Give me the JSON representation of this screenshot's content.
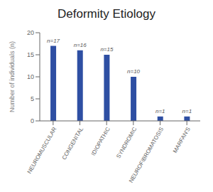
{
  "chart_data": {
    "type": "bar",
    "title": "Deformity Etiology",
    "ylabel": "Number of individuals (n)",
    "categories": [
      "NEUROMUSCULAR",
      "CONGENITAL",
      "IDIOPATHIC",
      "SYNDROMIC",
      "NEUROFIBROMATOSIS",
      "MARFAN'S"
    ],
    "values": [
      17,
      16,
      15,
      10,
      1,
      1
    ],
    "value_labels": [
      "n=17",
      "n=16",
      "n=15",
      "n=10",
      "n=1",
      "n=1"
    ],
    "data_labels": true,
    "color": "#2e4fa3",
    "ylim": [
      0,
      20
    ],
    "yticks": [
      0,
      5,
      10,
      15,
      20
    ],
    "grid": false
  }
}
